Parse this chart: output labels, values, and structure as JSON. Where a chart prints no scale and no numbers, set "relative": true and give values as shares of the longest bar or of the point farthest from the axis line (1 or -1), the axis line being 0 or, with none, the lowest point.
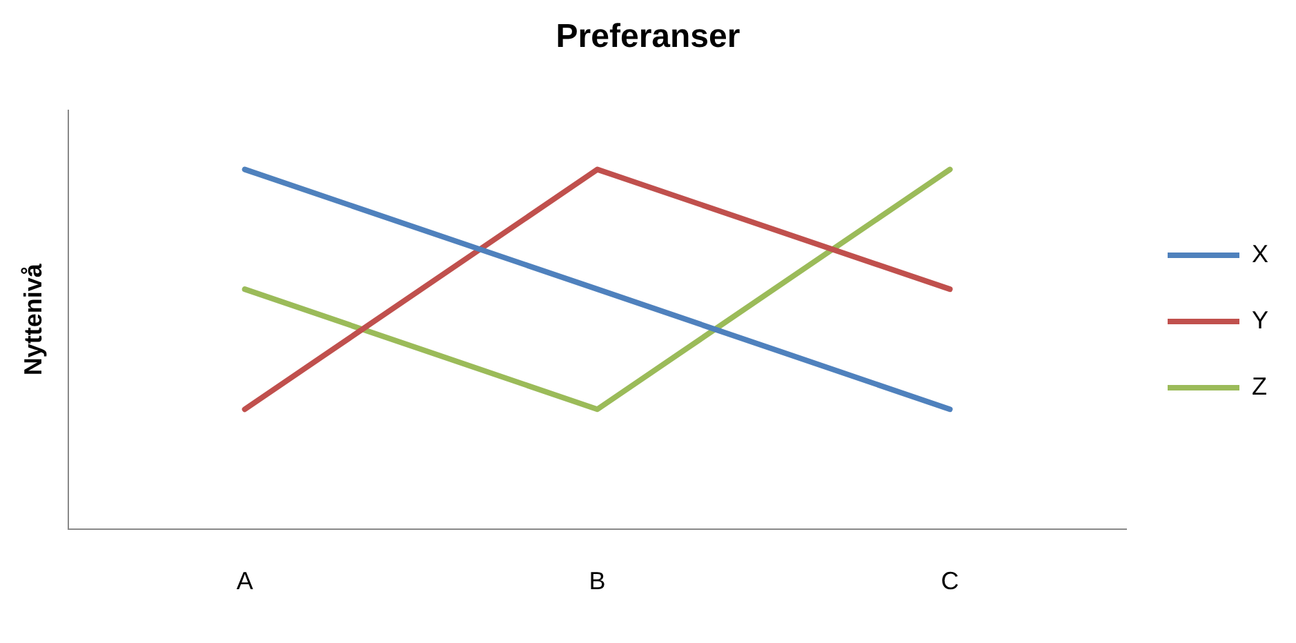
{
  "chart_data": {
    "type": "line",
    "title": "Preferanser",
    "ylabel": "Nyttenivå",
    "categories": [
      "A",
      "B",
      "C"
    ],
    "relative": true,
    "grid": false,
    "legend": "right",
    "marker": "none",
    "line_style": "solid",
    "series": [
      {
        "name": "X",
        "color": "#4f81bd",
        "values": [
          1,
          0.667,
          0.333
        ]
      },
      {
        "name": "Y",
        "color": "#c0504d",
        "values": [
          0.333,
          1,
          0.667
        ]
      },
      {
        "name": "Z",
        "color": "#9bbb59",
        "values": [
          0.667,
          0.333,
          1
        ]
      }
    ]
  }
}
